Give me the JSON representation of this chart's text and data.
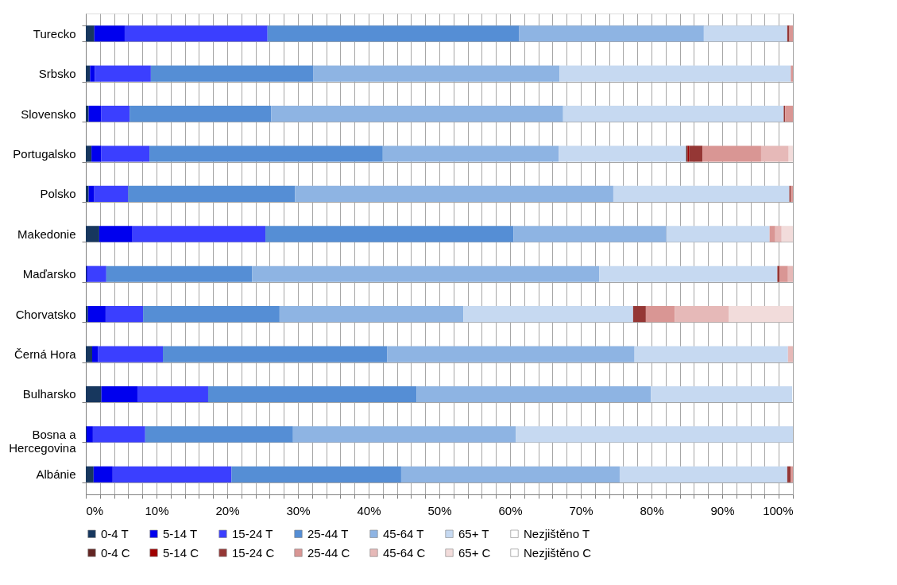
{
  "chart_data": {
    "type": "bar",
    "orientation": "horizontal",
    "stacked": true,
    "categories": [
      "Turecko",
      "Srbsko",
      "Slovensko",
      "Portugalsko",
      "Polsko",
      "Makedonie",
      "Maďarsko",
      "Chorvatsko",
      "Černá Hora",
      "Bulharsko",
      "Bosna a Hercegovina",
      "Albánie"
    ],
    "series": [
      {
        "name": "0-4 T",
        "color": "#17375e",
        "values": [
          1.2,
          0.6,
          0.4,
          0.8,
          0.4,
          1.9,
          0.1,
          0.3,
          0.9,
          2.2,
          0.1,
          1.1
        ]
      },
      {
        "name": "5-14 T",
        "color": "#0000ee",
        "values": [
          4.3,
          0.7,
          1.8,
          1.4,
          0.8,
          4.7,
          0.2,
          2.5,
          0.8,
          5.1,
          0.9,
          2.7
        ]
      },
      {
        "name": "15-24 T",
        "color": "#3b3fff",
        "values": [
          20.2,
          7.9,
          4.0,
          6.8,
          4.8,
          18.8,
          2.6,
          5.3,
          9.2,
          10.0,
          7.4,
          16.8
        ]
      },
      {
        "name": "25-44 T",
        "color": "#558ed5",
        "values": [
          35.6,
          23.0,
          20.0,
          33.0,
          23.6,
          35.1,
          20.6,
          19.3,
          31.7,
          29.5,
          20.9,
          24.0
        ]
      },
      {
        "name": "45-64 T",
        "color": "#8eb4e3",
        "values": [
          26.1,
          34.8,
          41.3,
          24.9,
          45.0,
          21.6,
          49.1,
          26.0,
          35.0,
          33.1,
          31.5,
          30.9
        ]
      },
      {
        "name": "65+ T",
        "color": "#c6d9f1",
        "values": [
          11.8,
          32.7,
          31.2,
          18.0,
          24.9,
          14.6,
          25.2,
          24.0,
          21.7,
          20.0,
          39.2,
          23.7
        ]
      },
      {
        "name": "Nezjištěno T",
        "color": "#ffffff",
        "values": [
          0,
          0,
          0,
          0,
          0,
          0,
          0,
          0,
          0,
          0,
          0,
          0
        ]
      },
      {
        "name": "0-4 C",
        "color": "#632523",
        "values": [
          0,
          0,
          0,
          0.2,
          0,
          0,
          0,
          0,
          0,
          0,
          0,
          0
        ]
      },
      {
        "name": "5-14 C",
        "color": "#a00000",
        "values": [
          0,
          0,
          0,
          0.2,
          0,
          0,
          0,
          0,
          0,
          0,
          0,
          0
        ]
      },
      {
        "name": "15-24 C",
        "color": "#953735",
        "values": [
          0.3,
          0,
          0.2,
          1.9,
          0.2,
          0,
          0.3,
          1.8,
          0,
          0,
          0,
          0.5
        ]
      },
      {
        "name": "25-44 C",
        "color": "#d99694",
        "values": [
          0.5,
          0.3,
          1.1,
          8.3,
          0.3,
          0.8,
          1.2,
          4.1,
          0,
          null,
          0,
          0.3
        ]
      },
      {
        "name": "45-64 C",
        "color": "#e6b9b8",
        "values": [
          0,
          0,
          0,
          3.9,
          0,
          0.9,
          0.7,
          7.6,
          0.7,
          0,
          0,
          0
        ]
      },
      {
        "name": "65+ C",
        "color": "#f2dcdb",
        "values": [
          0,
          0,
          0,
          0.6,
          0,
          1.6,
          0,
          9.1,
          0,
          0,
          0,
          0
        ]
      },
      {
        "name": "Nezjištěno C",
        "color": "#ffffff",
        "values": [
          0,
          0,
          0,
          0,
          0,
          0,
          0,
          0,
          0,
          0,
          0,
          0
        ]
      }
    ],
    "xlim": [
      0,
      100
    ],
    "xticks": [
      {
        "value": 0,
        "label": "0%"
      },
      {
        "value": 2,
        "label": null
      },
      {
        "value": 4,
        "label": null
      },
      {
        "value": 6,
        "label": null
      },
      {
        "value": 8,
        "label": null
      },
      {
        "value": 10,
        "label": "10%"
      },
      {
        "value": 12,
        "label": null
      },
      {
        "value": 14,
        "label": null
      },
      {
        "value": 16,
        "label": null
      },
      {
        "value": 18,
        "label": null
      },
      {
        "value": 20,
        "label": "20%"
      },
      {
        "value": 22,
        "label": null
      },
      {
        "value": 24,
        "label": null
      },
      {
        "value": 26,
        "label": null
      },
      {
        "value": 28,
        "label": null
      },
      {
        "value": 30,
        "label": "30%"
      },
      {
        "value": 32,
        "label": null
      },
      {
        "value": 34,
        "label": null
      },
      {
        "value": 36,
        "label": null
      },
      {
        "value": 38,
        "label": null
      },
      {
        "value": 40,
        "label": "40%"
      },
      {
        "value": 42,
        "label": null
      },
      {
        "value": 44,
        "label": null
      },
      {
        "value": 46,
        "label": null
      },
      {
        "value": 48,
        "label": null
      },
      {
        "value": 50,
        "label": "50%"
      },
      {
        "value": 52,
        "label": null
      },
      {
        "value": 54,
        "label": null
      },
      {
        "value": 56,
        "label": null
      },
      {
        "value": 58,
        "label": null
      },
      {
        "value": 60,
        "label": "60%"
      },
      {
        "value": 62,
        "label": null
      },
      {
        "value": 64,
        "label": null
      },
      {
        "value": 66,
        "label": null
      },
      {
        "value": 68,
        "label": null
      },
      {
        "value": 70,
        "label": "70%"
      },
      {
        "value": 72,
        "label": null
      },
      {
        "value": 74,
        "label": null
      },
      {
        "value": 76,
        "label": null
      },
      {
        "value": 78,
        "label": null
      },
      {
        "value": 80,
        "label": "80%"
      },
      {
        "value": 82,
        "label": null
      },
      {
        "value": 84,
        "label": null
      },
      {
        "value": 86,
        "label": null
      },
      {
        "value": 88,
        "label": null
      },
      {
        "value": 90,
        "label": "90%"
      },
      {
        "value": 92,
        "label": null
      },
      {
        "value": 94,
        "label": null
      },
      {
        "value": 96,
        "label": null
      },
      {
        "value": 98,
        "label": null
      },
      {
        "value": 100,
        "label": "100%"
      }
    ],
    "grid": true,
    "legend": "bottom"
  }
}
